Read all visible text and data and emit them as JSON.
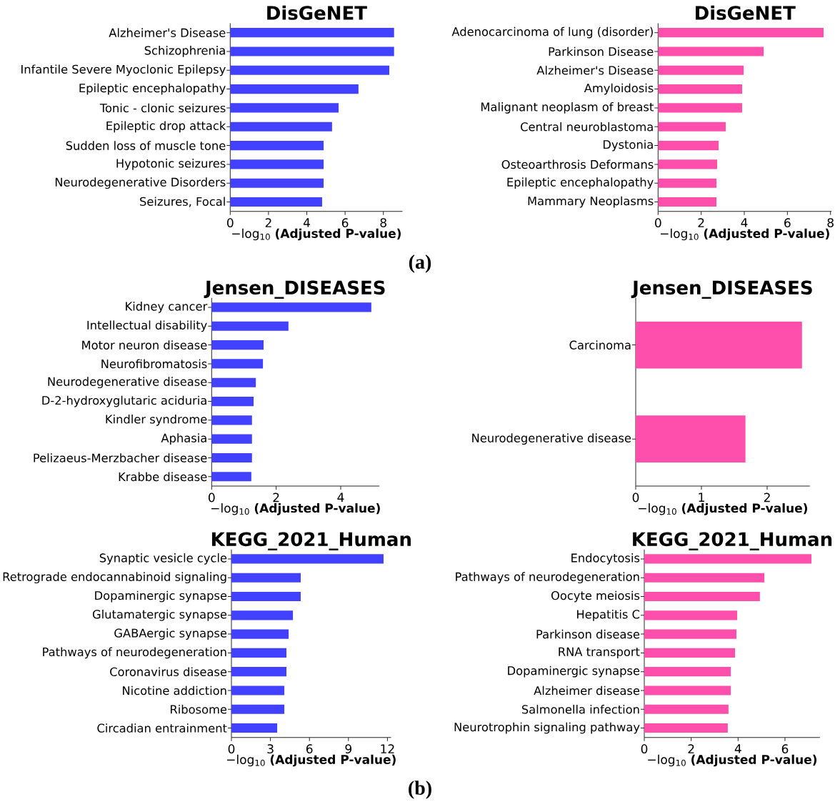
{
  "chart_data": [
    {
      "type": "bar",
      "orientation": "horizontal",
      "title": "DisGeNET",
      "xlabel": "−log$_{10}$ **(Adjusted P-value)**",
      "categories": [
        "Alzheimer's Disease",
        "Schizophrenia",
        "Infantile Severe Myoclonic Epilepsy",
        "Epileptic encephalopathy",
        "Tonic - clonic seizures",
        "Epileptic drop attack",
        "Sudden loss of muscle tone",
        "Hypotonic seizures",
        "Neurodegenerative Disorders",
        "Seizures, Focal"
      ],
      "values": [
        8.56,
        8.56,
        8.31,
        6.7,
        5.66,
        5.32,
        4.88,
        4.88,
        4.88,
        4.8
      ],
      "color": "#4141ff",
      "xlim": [
        0,
        9.0
      ],
      "xticks": [
        0,
        2,
        4,
        6,
        8
      ],
      "annotations": [
        "(a)"
      ]
    },
    {
      "type": "bar",
      "orientation": "horizontal",
      "title": "DisGeNET",
      "xlabel": "−log$_{10}$ **(Adjusted P-value)**",
      "categories": [
        "Adenocarcinoma of lung (disorder)",
        "Parkinson Disease",
        "Alzheimer's Disease",
        "Amyloidosis",
        "Malignant neoplasm of breast",
        "Central neuroblastoma",
        "Dystonia",
        "Osteoarthrosis Deformans",
        "Epileptic encephalopathy",
        "Mammary Neoplasms"
      ],
      "values": [
        7.68,
        4.9,
        3.97,
        3.9,
        3.9,
        3.14,
        2.81,
        2.74,
        2.71,
        2.71
      ],
      "color": "#ff4fac",
      "xlim": [
        0,
        8.05
      ],
      "xticks": [
        0,
        2,
        4,
        6,
        8
      ]
    },
    {
      "type": "bar",
      "orientation": "horizontal",
      "title": "Jensen_DISEASES",
      "xlabel": "−log$_{10}$ **(Adjusted P-value)**",
      "categories": [
        "Kidney cancer",
        "Intellectual disability",
        "Motor neuron disease",
        "Neurofibromatosis",
        "Neurodegenerative disease",
        "D-2-hydroxyglutaric aciduria",
        "Kindler syndrome",
        "Aphasia",
        "Pelizaeus-Merzbacher disease",
        "Krabbe disease"
      ],
      "values": [
        4.95,
        2.38,
        1.61,
        1.59,
        1.37,
        1.3,
        1.25,
        1.25,
        1.25,
        1.23
      ],
      "color": "#4141ff",
      "xlim": [
        0,
        5.2
      ],
      "xticks": [
        0,
        2,
        4
      ]
    },
    {
      "type": "bar",
      "orientation": "horizontal",
      "title": "Jensen_DISEASES",
      "xlabel": "−log$_{10}$ **(Adjusted P-value)**",
      "categories": [
        "Carcinoma",
        "Neurodegenerative disease"
      ],
      "values": [
        2.53,
        1.67
      ],
      "color": "#ff4fac",
      "xlim": [
        0,
        2.65
      ],
      "xticks": [
        0,
        1,
        2
      ]
    },
    {
      "type": "bar",
      "orientation": "horizontal",
      "title": "KEGG_2021_Human",
      "xlabel": "−log$_{10}$ **(Adjusted P-value)**",
      "categories": [
        "Synaptic vesicle cycle",
        "Retrograde endocannabinoid signaling",
        "Dopaminergic synapse",
        "Glutamatergic synapse",
        "GABAergic synapse",
        "Pathways of neurodegeneration",
        "Coronavirus disease",
        "Nicotine addiction",
        "Ribosome",
        "Circadian entrainment"
      ],
      "values": [
        11.7,
        5.33,
        5.33,
        4.73,
        4.4,
        4.23,
        4.23,
        4.07,
        4.07,
        3.52
      ],
      "color": "#4141ff",
      "xlim": [
        0,
        12.28
      ],
      "xticks": [
        0,
        3,
        6,
        9,
        12
      ],
      "annotations": [
        "(b)"
      ]
    },
    {
      "type": "bar",
      "orientation": "horizontal",
      "title": "KEGG_2021_Human",
      "xlabel": "−log$_{10}$ **(Adjusted P-value)**",
      "categories": [
        "Endocytosis",
        "Pathways of neurodegeneration",
        "Oocyte meiosis",
        "Hepatitis C",
        "Parkinson disease",
        "RNA transport",
        "Dopaminergic synapse",
        "Alzheimer disease",
        "Salmonella infection",
        "Neurotrophin signaling pathway"
      ],
      "values": [
        7.13,
        5.12,
        4.93,
        3.96,
        3.93,
        3.87,
        3.69,
        3.69,
        3.59,
        3.56
      ],
      "color": "#ff4fac",
      "xlim": [
        0,
        7.49
      ],
      "xticks": [
        0,
        2,
        4,
        6
      ]
    }
  ]
}
